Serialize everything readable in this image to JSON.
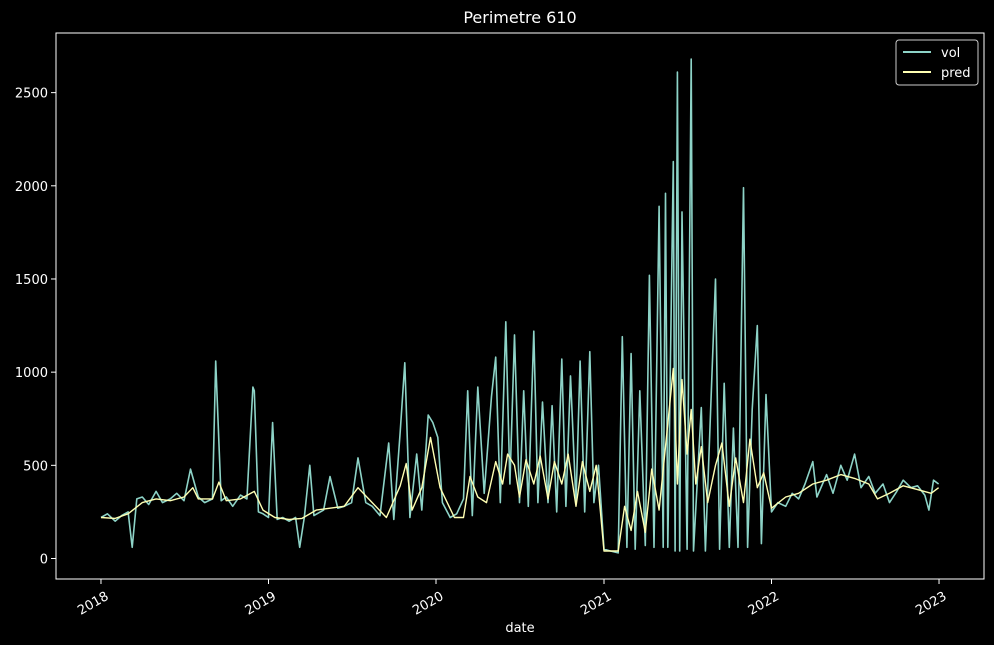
{
  "chart_data": {
    "type": "line",
    "title": "Perimetre 610",
    "xlabel": "date",
    "ylabel": "",
    "ylim": [
      -110,
      2820
    ],
    "xlim": [
      "2017-09-25",
      "2023-04-09"
    ],
    "y_ticks": [
      0,
      500,
      1000,
      1500,
      2000,
      2500
    ],
    "y_tick_labels": [
      "0",
      "500",
      "1000",
      "1500",
      "2000",
      "2500"
    ],
    "x_ticks": [
      "2018-01-01",
      "2019-01-01",
      "2020-01-01",
      "2021-01-01",
      "2022-01-01",
      "2023-01-01"
    ],
    "x_tick_labels": [
      "2018",
      "2019",
      "2020",
      "2021",
      "2022",
      "2023"
    ],
    "grid": false,
    "legend_position": "top-right",
    "colors": {
      "background": "#000000",
      "foreground": "#ffffff"
    },
    "series": [
      {
        "name": "vol",
        "color": "#8dd3c7",
        "points": [
          [
            "2018-01-01",
            220
          ],
          [
            "2018-01-15",
            240
          ],
          [
            "2018-02-01",
            200
          ],
          [
            "2018-02-15",
            230
          ],
          [
            "2018-03-01",
            250
          ],
          [
            "2018-03-10",
            60
          ],
          [
            "2018-03-20",
            320
          ],
          [
            "2018-04-01",
            330
          ],
          [
            "2018-04-15",
            290
          ],
          [
            "2018-05-01",
            360
          ],
          [
            "2018-05-15",
            300
          ],
          [
            "2018-06-01",
            320
          ],
          [
            "2018-06-15",
            350
          ],
          [
            "2018-07-01",
            310
          ],
          [
            "2018-07-15",
            480
          ],
          [
            "2018-08-01",
            330
          ],
          [
            "2018-08-15",
            300
          ],
          [
            "2018-09-01",
            320
          ],
          [
            "2018-09-08",
            1060
          ],
          [
            "2018-09-20",
            310
          ],
          [
            "2018-10-01",
            330
          ],
          [
            "2018-10-15",
            280
          ],
          [
            "2018-11-01",
            340
          ],
          [
            "2018-11-15",
            320
          ],
          [
            "2018-11-28",
            920
          ],
          [
            "2018-12-01",
            900
          ],
          [
            "2018-12-10",
            250
          ],
          [
            "2018-12-20",
            240
          ],
          [
            "2019-01-01",
            220
          ],
          [
            "2019-01-10",
            730
          ],
          [
            "2019-01-20",
            210
          ],
          [
            "2019-02-01",
            220
          ],
          [
            "2019-02-15",
            200
          ],
          [
            "2019-03-01",
            220
          ],
          [
            "2019-03-10",
            60
          ],
          [
            "2019-03-20",
            220
          ],
          [
            "2019-04-01",
            500
          ],
          [
            "2019-04-10",
            230
          ],
          [
            "2019-05-01",
            260
          ],
          [
            "2019-05-15",
            440
          ],
          [
            "2019-06-01",
            270
          ],
          [
            "2019-06-15",
            280
          ],
          [
            "2019-07-01",
            300
          ],
          [
            "2019-07-15",
            540
          ],
          [
            "2019-08-01",
            300
          ],
          [
            "2019-08-15",
            280
          ],
          [
            "2019-09-01",
            230
          ],
          [
            "2019-09-20",
            620
          ],
          [
            "2019-10-01",
            210
          ],
          [
            "2019-10-15",
            680
          ],
          [
            "2019-10-25",
            1050
          ],
          [
            "2019-11-05",
            220
          ],
          [
            "2019-11-20",
            560
          ],
          [
            "2019-12-01",
            260
          ],
          [
            "2019-12-15",
            770
          ],
          [
            "2019-12-25",
            730
          ],
          [
            "2020-01-05",
            650
          ],
          [
            "2020-01-15",
            300
          ],
          [
            "2020-02-01",
            220
          ],
          [
            "2020-02-15",
            240
          ],
          [
            "2020-03-01",
            320
          ],
          [
            "2020-03-10",
            900
          ],
          [
            "2020-03-20",
            230
          ],
          [
            "2020-04-01",
            920
          ],
          [
            "2020-04-15",
            350
          ],
          [
            "2020-05-01",
            870
          ],
          [
            "2020-05-10",
            1080
          ],
          [
            "2020-05-20",
            300
          ],
          [
            "2020-06-01",
            1270
          ],
          [
            "2020-06-10",
            400
          ],
          [
            "2020-06-20",
            1200
          ],
          [
            "2020-07-01",
            300
          ],
          [
            "2020-07-10",
            900
          ],
          [
            "2020-07-20",
            280
          ],
          [
            "2020-08-01",
            1220
          ],
          [
            "2020-08-10",
            300
          ],
          [
            "2020-08-20",
            840
          ],
          [
            "2020-09-01",
            300
          ],
          [
            "2020-09-10",
            820
          ],
          [
            "2020-09-20",
            250
          ],
          [
            "2020-10-01",
            1070
          ],
          [
            "2020-10-10",
            280
          ],
          [
            "2020-10-20",
            980
          ],
          [
            "2020-11-01",
            300
          ],
          [
            "2020-11-10",
            1060
          ],
          [
            "2020-11-20",
            250
          ],
          [
            "2020-12-01",
            1110
          ],
          [
            "2020-12-10",
            300
          ],
          [
            "2020-12-20",
            500
          ],
          [
            "2021-01-01",
            50
          ],
          [
            "2021-01-15",
            40
          ],
          [
            "2021-02-01",
            30
          ],
          [
            "2021-02-10",
            1190
          ],
          [
            "2021-02-20",
            60
          ],
          [
            "2021-03-01",
            1100
          ],
          [
            "2021-03-10",
            50
          ],
          [
            "2021-03-20",
            900
          ],
          [
            "2021-04-01",
            70
          ],
          [
            "2021-04-10",
            1520
          ],
          [
            "2021-04-20",
            60
          ],
          [
            "2021-05-01",
            1890
          ],
          [
            "2021-05-10",
            60
          ],
          [
            "2021-05-15",
            1960
          ],
          [
            "2021-05-20",
            60
          ],
          [
            "2021-06-01",
            2130
          ],
          [
            "2021-06-05",
            40
          ],
          [
            "2021-06-10",
            2610
          ],
          [
            "2021-06-15",
            40
          ],
          [
            "2021-06-20",
            1860
          ],
          [
            "2021-07-01",
            50
          ],
          [
            "2021-07-10",
            2680
          ],
          [
            "2021-07-15",
            40
          ],
          [
            "2021-08-01",
            810
          ],
          [
            "2021-08-10",
            40
          ],
          [
            "2021-09-01",
            1500
          ],
          [
            "2021-09-10",
            50
          ],
          [
            "2021-09-20",
            940
          ],
          [
            "2021-10-01",
            60
          ],
          [
            "2021-10-10",
            700
          ],
          [
            "2021-10-20",
            60
          ],
          [
            "2021-11-01",
            1990
          ],
          [
            "2021-11-10",
            60
          ],
          [
            "2021-11-20",
            800
          ],
          [
            "2021-12-01",
            1250
          ],
          [
            "2021-12-10",
            80
          ],
          [
            "2021-12-20",
            880
          ],
          [
            "2022-01-01",
            250
          ],
          [
            "2022-01-15",
            300
          ],
          [
            "2022-02-01",
            280
          ],
          [
            "2022-02-15",
            350
          ],
          [
            "2022-03-01",
            320
          ],
          [
            "2022-03-15",
            400
          ],
          [
            "2022-04-01",
            520
          ],
          [
            "2022-04-10",
            330
          ],
          [
            "2022-05-01",
            450
          ],
          [
            "2022-05-15",
            350
          ],
          [
            "2022-06-01",
            500
          ],
          [
            "2022-06-15",
            420
          ],
          [
            "2022-07-01",
            560
          ],
          [
            "2022-07-15",
            380
          ],
          [
            "2022-08-01",
            440
          ],
          [
            "2022-08-15",
            350
          ],
          [
            "2022-09-01",
            400
          ],
          [
            "2022-09-15",
            300
          ],
          [
            "2022-10-01",
            360
          ],
          [
            "2022-10-15",
            420
          ],
          [
            "2022-11-01",
            380
          ],
          [
            "2022-11-15",
            390
          ],
          [
            "2022-12-01",
            340
          ],
          [
            "2022-12-10",
            260
          ],
          [
            "2022-12-20",
            420
          ],
          [
            "2022-12-31",
            400
          ]
        ]
      },
      {
        "name": "pred",
        "color": "#ffffb3",
        "points": [
          [
            "2018-01-01",
            220
          ],
          [
            "2018-02-01",
            215
          ],
          [
            "2018-03-01",
            240
          ],
          [
            "2018-04-01",
            300
          ],
          [
            "2018-05-01",
            320
          ],
          [
            "2018-06-01",
            310
          ],
          [
            "2018-07-01",
            330
          ],
          [
            "2018-07-20",
            380
          ],
          [
            "2018-08-01",
            320
          ],
          [
            "2018-09-01",
            320
          ],
          [
            "2018-09-15",
            410
          ],
          [
            "2018-10-01",
            310
          ],
          [
            "2018-11-01",
            320
          ],
          [
            "2018-12-01",
            360
          ],
          [
            "2018-12-20",
            260
          ],
          [
            "2019-01-15",
            220
          ],
          [
            "2019-02-15",
            210
          ],
          [
            "2019-03-15",
            215
          ],
          [
            "2019-04-15",
            260
          ],
          [
            "2019-05-15",
            270
          ],
          [
            "2019-06-15",
            280
          ],
          [
            "2019-07-15",
            380
          ],
          [
            "2019-08-15",
            300
          ],
          [
            "2019-09-15",
            220
          ],
          [
            "2019-10-15",
            390
          ],
          [
            "2019-10-28",
            510
          ],
          [
            "2019-11-10",
            260
          ],
          [
            "2019-12-01",
            380
          ],
          [
            "2019-12-20",
            650
          ],
          [
            "2020-01-10",
            380
          ],
          [
            "2020-02-10",
            220
          ],
          [
            "2020-03-01",
            220
          ],
          [
            "2020-03-15",
            440
          ],
          [
            "2020-04-01",
            330
          ],
          [
            "2020-04-20",
            300
          ],
          [
            "2020-05-10",
            520
          ],
          [
            "2020-05-25",
            400
          ],
          [
            "2020-06-05",
            560
          ],
          [
            "2020-06-20",
            500
          ],
          [
            "2020-07-01",
            330
          ],
          [
            "2020-07-15",
            530
          ],
          [
            "2020-08-01",
            400
          ],
          [
            "2020-08-15",
            550
          ],
          [
            "2020-09-01",
            320
          ],
          [
            "2020-09-15",
            520
          ],
          [
            "2020-10-01",
            400
          ],
          [
            "2020-10-15",
            560
          ],
          [
            "2020-11-01",
            280
          ],
          [
            "2020-11-15",
            520
          ],
          [
            "2020-12-01",
            360
          ],
          [
            "2020-12-15",
            500
          ],
          [
            "2021-01-01",
            40
          ],
          [
            "2021-02-01",
            40
          ],
          [
            "2021-02-15",
            280
          ],
          [
            "2021-03-01",
            150
          ],
          [
            "2021-03-15",
            360
          ],
          [
            "2021-04-01",
            140
          ],
          [
            "2021-04-15",
            480
          ],
          [
            "2021-05-01",
            260
          ],
          [
            "2021-05-15",
            600
          ],
          [
            "2021-06-01",
            1020
          ],
          [
            "2021-06-10",
            400
          ],
          [
            "2021-06-20",
            960
          ],
          [
            "2021-07-01",
            560
          ],
          [
            "2021-07-10",
            800
          ],
          [
            "2021-07-20",
            400
          ],
          [
            "2021-08-01",
            600
          ],
          [
            "2021-08-15",
            300
          ],
          [
            "2021-09-01",
            500
          ],
          [
            "2021-09-15",
            620
          ],
          [
            "2021-10-01",
            280
          ],
          [
            "2021-10-15",
            540
          ],
          [
            "2021-11-01",
            300
          ],
          [
            "2021-11-15",
            640
          ],
          [
            "2021-12-01",
            380
          ],
          [
            "2021-12-15",
            460
          ],
          [
            "2022-01-01",
            270
          ],
          [
            "2022-02-01",
            330
          ],
          [
            "2022-03-01",
            350
          ],
          [
            "2022-04-01",
            400
          ],
          [
            "2022-05-01",
            420
          ],
          [
            "2022-06-01",
            450
          ],
          [
            "2022-07-01",
            430
          ],
          [
            "2022-08-01",
            400
          ],
          [
            "2022-08-20",
            320
          ],
          [
            "2022-09-15",
            350
          ],
          [
            "2022-10-15",
            390
          ],
          [
            "2022-11-15",
            370
          ],
          [
            "2022-12-15",
            350
          ],
          [
            "2022-12-31",
            380
          ]
        ]
      }
    ]
  }
}
